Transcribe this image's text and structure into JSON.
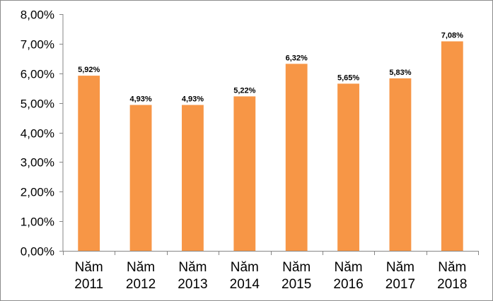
{
  "chart_data": {
    "type": "bar",
    "categories": [
      [
        "Năm",
        "2011"
      ],
      [
        "Năm",
        "2012"
      ],
      [
        "Năm",
        "2013"
      ],
      [
        "Năm",
        "2014"
      ],
      [
        "Năm",
        "2015"
      ],
      [
        "Năm",
        "2016"
      ],
      [
        "Năm",
        "2017"
      ],
      [
        "Năm",
        "2018"
      ]
    ],
    "values": [
      5.92,
      4.93,
      4.93,
      5.22,
      6.32,
      5.65,
      5.83,
      7.08
    ],
    "data_labels": [
      "5,92%",
      "4,93%",
      "4,93%",
      "5,22%",
      "6,32%",
      "5,65%",
      "5,83%",
      "7,08%"
    ],
    "y_ticks": [
      0,
      1,
      2,
      3,
      4,
      5,
      6,
      7,
      8
    ],
    "y_tick_labels": [
      "0,00%",
      "1,00%",
      "2,00%",
      "3,00%",
      "4,00%",
      "5,00%",
      "6,00%",
      "7,00%",
      "8,00%"
    ],
    "ylim": [
      0,
      8
    ],
    "grid": false,
    "legend": "none",
    "colors": {
      "bar": "#F79646",
      "axis": "#868686",
      "frame": "#8C8C8C"
    }
  }
}
